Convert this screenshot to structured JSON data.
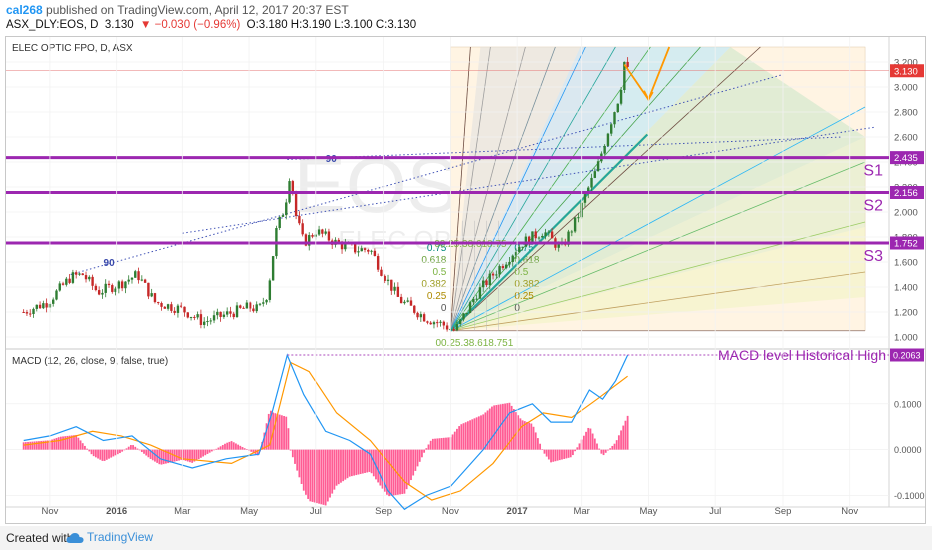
{
  "header": {
    "user": "cal268",
    "published": " published on TradingView.com, April 12, 2017 20:37 EST",
    "symbol": "ASX_DLY:EOS, D",
    "last": "3.130",
    "change": "▼ −0.030 (−0.96%)",
    "ohlc": "O:3.180 H:3.190 L:3.100 C:3.130"
  },
  "footer": {
    "created_with": "Created with",
    "brand": "TradingView"
  },
  "colors": {
    "up": "#2e7d32",
    "down": "#c62828",
    "level": "#9c27b0",
    "macd": "#2196f3",
    "signal": "#ff9800",
    "hist": "#ff4081",
    "trend": "#26a69a",
    "fan_edge": "#6d4c41",
    "orange": "#ff9800",
    "blue_dotted": "#3f51b5",
    "price_tag": "#e53935"
  },
  "chart_data": [
    {
      "type": "candlestick",
      "title": "ELEC OPTIC FPO, D, ASX",
      "watermark": "EOS, D",
      "watermark2": "ELEC OPTIC FPO",
      "x_ticks": [
        "Nov",
        "2016",
        "Mar",
        "May",
        "Jul",
        "Sep",
        "Nov",
        "2017",
        "Mar",
        "May",
        "Jul",
        "Sep",
        "Nov"
      ],
      "y_ticks": [
        "1.000",
        "1.200",
        "1.400",
        "1.600",
        "1.800",
        "2.000",
        "2.200",
        "2.400",
        "2.600",
        "2.800",
        "3.000",
        "3.200"
      ],
      "ylim": [
        0.92,
        3.32
      ],
      "last_price": "3.130",
      "price_path": [
        [
          "2015-10-08",
          1.2
        ],
        [
          "2015-10-30",
          1.28
        ],
        [
          "2015-11-20",
          1.48
        ],
        [
          "2015-12-01",
          1.5
        ],
        [
          "2015-12-15",
          1.36
        ],
        [
          "2016-01-05",
          1.43
        ],
        [
          "2016-01-20",
          1.5
        ],
        [
          "2016-02-05",
          1.28
        ],
        [
          "2016-03-01",
          1.22
        ],
        [
          "2016-03-20",
          1.12
        ],
        [
          "2016-04-10",
          1.18
        ],
        [
          "2016-05-01",
          1.24
        ],
        [
          "2016-05-10",
          1.22
        ],
        [
          "2016-05-18",
          1.35
        ],
        [
          "2016-05-26",
          1.85
        ],
        [
          "2016-06-03",
          2.05
        ],
        [
          "2016-06-08",
          2.35
        ],
        [
          "2016-06-12",
          2.0
        ],
        [
          "2016-06-20",
          1.75
        ],
        [
          "2016-07-01",
          1.85
        ],
        [
          "2016-07-20",
          1.75
        ],
        [
          "2016-08-05",
          1.7
        ],
        [
          "2016-08-20",
          1.7
        ],
        [
          "2016-09-01",
          1.5
        ],
        [
          "2016-09-15",
          1.3
        ],
        [
          "2016-10-10",
          1.15
        ],
        [
          "2016-10-25",
          1.1
        ],
        [
          "2016-11-05",
          1.05
        ],
        [
          "2016-11-10",
          1.12
        ],
        [
          "2016-11-25",
          1.35
        ],
        [
          "2016-12-15",
          1.55
        ],
        [
          "2017-01-05",
          1.75
        ],
        [
          "2017-01-25",
          1.85
        ],
        [
          "2017-02-10",
          1.7
        ],
        [
          "2017-02-25",
          1.95
        ],
        [
          "2017-03-05",
          2.15
        ],
        [
          "2017-03-15",
          2.35
        ],
        [
          "2017-03-25",
          2.65
        ],
        [
          "2017-04-05",
          2.95
        ],
        [
          "2017-04-09",
          3.2
        ],
        [
          "2017-04-12",
          3.13
        ]
      ],
      "levels": [
        {
          "label": "S1",
          "value": 2.435
        },
        {
          "label": "S2",
          "value": 2.156
        },
        {
          "label": "S3",
          "value": 1.752
        }
      ],
      "gann_fan": {
        "origin": [
          "2016-11-01",
          1.05
        ],
        "box_end": [
          "2017-11-15",
          3.32
        ],
        "ratios": [
          "0.75",
          "0.618",
          "0.5",
          "0.382",
          "0.25",
          "0"
        ],
        "top_label": "00.25.38.618.75",
        "bottom_label": "00.25.38.618.751"
      },
      "angle_labels": [
        "90",
        "90"
      ]
    },
    {
      "type": "line",
      "title": "MACD (12, 26, close, 9, false, true)",
      "series": [
        {
          "name": "MACD",
          "values": [
            [
              "2015-10-08",
              0.02
            ],
            [
              "2015-11-01",
              0.03
            ],
            [
              "2015-11-25",
              0.05
            ],
            [
              "2015-12-20",
              0.02
            ],
            [
              "2016-01-15",
              0.03
            ],
            [
              "2016-02-10",
              -0.02
            ],
            [
              "2016-03-10",
              -0.04
            ],
            [
              "2016-04-10",
              -0.02
            ],
            [
              "2016-05-10",
              -0.01
            ],
            [
              "2016-05-22",
              0.08
            ],
            [
              "2016-06-05",
              0.206
            ],
            [
              "2016-06-20",
              0.12
            ],
            [
              "2016-07-10",
              0.04
            ],
            [
              "2016-08-01",
              0.02
            ],
            [
              "2016-08-20",
              -0.01
            ],
            [
              "2016-09-05",
              -0.09
            ],
            [
              "2016-09-20",
              -0.13
            ],
            [
              "2016-10-10",
              -0.1
            ],
            [
              "2016-11-01",
              -0.08
            ],
            [
              "2016-12-01",
              0.0
            ],
            [
              "2016-12-25",
              0.08
            ],
            [
              "2017-01-15",
              0.1
            ],
            [
              "2017-02-01",
              0.06
            ],
            [
              "2017-02-20",
              0.06
            ],
            [
              "2017-03-08",
              0.13
            ],
            [
              "2017-03-20",
              0.11
            ],
            [
              "2017-04-01",
              0.15
            ],
            [
              "2017-04-12",
              0.206
            ]
          ]
        },
        {
          "name": "Signal",
          "values": [
            [
              "2015-10-08",
              0.01
            ],
            [
              "2015-11-10",
              0.02
            ],
            [
              "2015-12-10",
              0.04
            ],
            [
              "2016-01-05",
              0.03
            ],
            [
              "2016-02-01",
              0.01
            ],
            [
              "2016-03-01",
              -0.02
            ],
            [
              "2016-04-15",
              -0.03
            ],
            [
              "2016-05-20",
              0.01
            ],
            [
              "2016-06-08",
              0.19
            ],
            [
              "2016-06-25",
              0.17
            ],
            [
              "2016-07-20",
              0.08
            ],
            [
              "2016-08-20",
              0.02
            ],
            [
              "2016-09-20",
              -0.07
            ],
            [
              "2016-10-15",
              -0.11
            ],
            [
              "2016-11-10",
              -0.09
            ],
            [
              "2016-12-10",
              -0.03
            ],
            [
              "2017-01-05",
              0.05
            ],
            [
              "2017-01-25",
              0.08
            ],
            [
              "2017-02-20",
              0.07
            ],
            [
              "2017-03-15",
              0.11
            ],
            [
              "2017-04-12",
              0.16
            ]
          ]
        }
      ],
      "y_ticks": [
        "-0.1000",
        "0.0000",
        "0.1000"
      ],
      "ylim": [
        -0.125,
        0.215
      ],
      "annotation": "MACD level Historical High",
      "last_value": "0.2063"
    }
  ]
}
